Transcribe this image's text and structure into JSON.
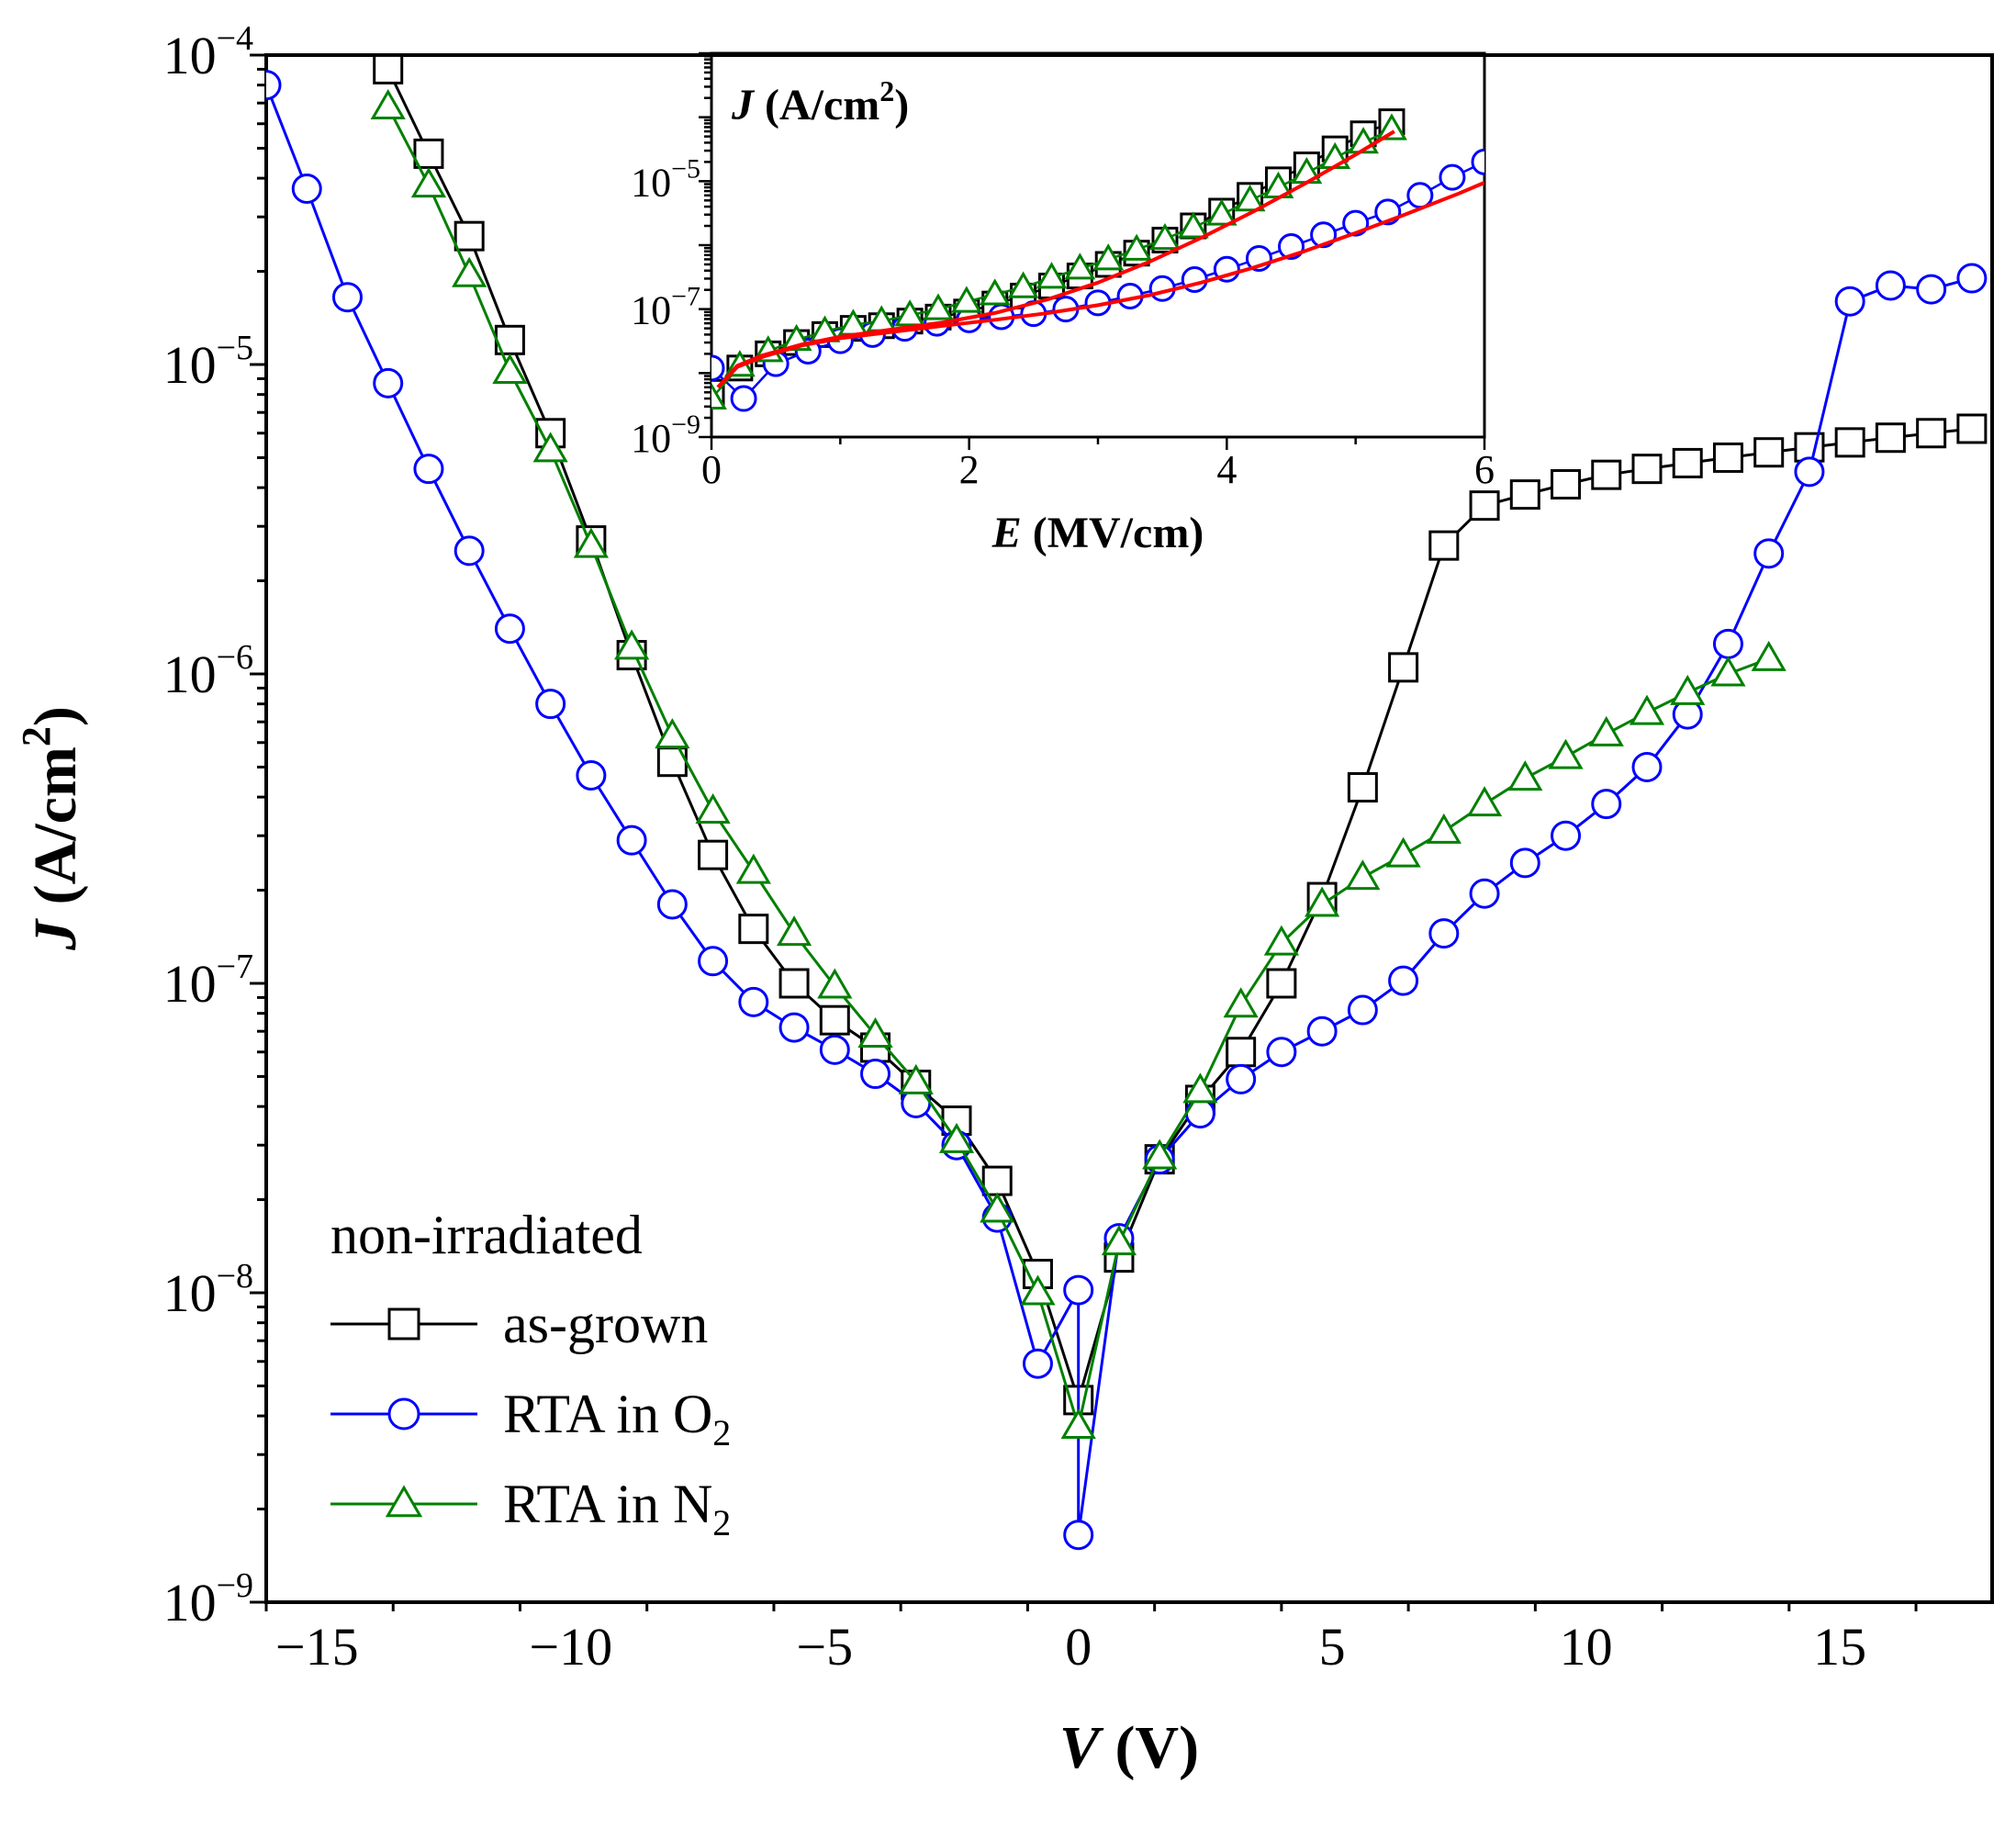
{
  "colors": {
    "as_grown": "#000000",
    "rta_o2": "#0000ff",
    "rta_n2": "#008000",
    "fit": "#ff0000"
  },
  "legend": {
    "title": "non-irradiated",
    "items": [
      {
        "label": "as-grown",
        "marker": "square",
        "color": "#000000"
      },
      {
        "label": "RTA in O",
        "sub": "2",
        "marker": "circle",
        "color": "#0000ff"
      },
      {
        "label": "RTA in N",
        "sub": "2",
        "marker": "triangle",
        "color": "#008000"
      }
    ]
  },
  "chart_data": [
    {
      "type": "line",
      "xlabel": {
        "var": "V",
        "unit": " (V)"
      },
      "ylabel": {
        "var": "J",
        "unit": " (A/cm",
        "sup": "2",
        "close": ")"
      },
      "xlim": [
        -16,
        18
      ],
      "ylim": [
        1e-09,
        0.0001
      ],
      "yscale": "log",
      "xticks": [
        {
          "v": -15,
          "label": "−15"
        },
        {
          "v": -10,
          "label": "−10"
        },
        {
          "v": -5,
          "label": "−5"
        },
        {
          "v": 0,
          "label": "0"
        },
        {
          "v": 5,
          "label": "5"
        },
        {
          "v": 10,
          "label": "10"
        },
        {
          "v": 15,
          "label": "15"
        }
      ],
      "yticks": [
        {
          "v": 1e-09,
          "base": "10",
          "exp": "−9"
        },
        {
          "v": 1e-08,
          "base": "10",
          "exp": "−8"
        },
        {
          "v": 1e-07,
          "base": "10",
          "exp": "−7"
        },
        {
          "v": 1e-06,
          "base": "10",
          "exp": "−6"
        },
        {
          "v": 1e-05,
          "base": "10",
          "exp": "−5"
        },
        {
          "v": 0.0001,
          "base": "10",
          "exp": "−4"
        }
      ],
      "series": [
        {
          "name": "as-grown",
          "marker": "square",
          "color": "#000000",
          "x": [
            -13.6,
            -12.8,
            -12.0,
            -11.2,
            -10.4,
            -9.6,
            -8.8,
            -8.0,
            -7.2,
            -6.4,
            -5.6,
            -4.8,
            -4.0,
            -3.2,
            -2.4,
            -1.6,
            -0.8,
            0.0,
            0.8,
            1.6,
            2.4,
            3.2,
            4.0,
            4.8,
            5.6,
            6.4,
            7.2,
            8.0,
            8.8,
            9.6,
            10.4,
            11.2,
            12.0,
            12.8,
            13.6,
            14.4,
            15.2,
            16.0,
            16.8,
            17.6
          ],
          "y": [
            9e-05,
            4.8e-05,
            2.6e-05,
            1.2e-05,
            6e-06,
            2.7e-06,
            1.15e-06,
            5.2e-07,
            2.6e-07,
            1.5e-07,
            1e-07,
            7.6e-08,
            6.2e-08,
            4.7e-08,
            3.6e-08,
            2.3e-08,
            1.15e-08,
            4.5e-09,
            1.3e-08,
            2.7e-08,
            4.2e-08,
            6e-08,
            1e-07,
            1.9e-07,
            4.3e-07,
            1.05e-06,
            2.6e-06,
            3.5e-06,
            3.8e-06,
            4.1e-06,
            4.4e-06,
            4.6e-06,
            4.8e-06,
            5e-06,
            5.2e-06,
            5.4e-06,
            5.6e-06,
            5.8e-06,
            6e-06,
            6.2e-06
          ]
        },
        {
          "name": "RTA in O2",
          "marker": "circle",
          "color": "#0000ff",
          "x": [
            -16.0,
            -15.2,
            -14.4,
            -13.6,
            -12.8,
            -12.0,
            -11.2,
            -10.4,
            -9.6,
            -8.8,
            -8.0,
            -7.2,
            -6.4,
            -5.6,
            -4.8,
            -4.0,
            -3.2,
            -2.4,
            -1.6,
            -0.8,
            0.0,
            0.0,
            0.8,
            1.6,
            2.4,
            3.2,
            4.0,
            4.8,
            5.6,
            6.4,
            7.2,
            8.0,
            8.8,
            9.6,
            10.4,
            11.2,
            12.0,
            12.8,
            13.6,
            14.4,
            15.2,
            16.0,
            16.8,
            17.6
          ],
          "y": [
            8e-05,
            3.7e-05,
            1.65e-05,
            8.7e-06,
            4.6e-06,
            2.5e-06,
            1.4e-06,
            8e-07,
            4.7e-07,
            2.9e-07,
            1.8e-07,
            1.18e-07,
            8.7e-08,
            7.2e-08,
            6.1e-08,
            5.1e-08,
            4.1e-08,
            3e-08,
            1.75e-08,
            5.9e-09,
            1.02e-08,
            1.65e-09,
            1.5e-08,
            2.7e-08,
            3.8e-08,
            4.9e-08,
            6e-08,
            7e-08,
            8.2e-08,
            1.02e-07,
            1.45e-07,
            1.95e-07,
            2.45e-07,
            3e-07,
            3.8e-07,
            5e-07,
            7.4e-07,
            1.25e-06,
            2.45e-06,
            4.5e-06,
            1.6e-05,
            1.8e-05,
            1.75e-05,
            1.9e-05
          ]
        },
        {
          "name": "RTA in N2",
          "marker": "triangle",
          "color": "#008000",
          "x": [
            -13.6,
            -12.8,
            -12.0,
            -11.2,
            -10.4,
            -9.6,
            -8.8,
            -8.0,
            -7.2,
            -6.4,
            -5.6,
            -4.8,
            -4.0,
            -3.2,
            -2.4,
            -1.6,
            -0.8,
            0.0,
            0.8,
            1.6,
            2.4,
            3.2,
            4.0,
            4.8,
            5.6,
            6.4,
            7.2,
            8.0,
            8.8,
            9.6,
            10.4,
            11.2,
            12.0,
            12.8,
            13.6
          ],
          "y": [
            6.8e-05,
            3.8e-05,
            1.95e-05,
            9.5e-06,
            5.3e-06,
            2.6e-06,
            1.22e-06,
            6.3e-07,
            3.6e-07,
            2.3e-07,
            1.45e-07,
            9.8e-08,
            6.8e-08,
            4.8e-08,
            3.1e-08,
            1.85e-08,
            1e-08,
            3.7e-09,
            1.45e-08,
            2.75e-08,
            4.5e-08,
            8.5e-08,
            1.35e-07,
            1.8e-07,
            2.2e-07,
            2.6e-07,
            3.1e-07,
            3.8e-07,
            4.6e-07,
            5.4e-07,
            6.4e-07,
            7.5e-07,
            8.7e-07,
            1e-06,
            1.12e-06
          ]
        }
      ]
    },
    {
      "type": "line",
      "xlabel": {
        "var": "E",
        "unit": " (MV/cm)"
      },
      "ylabel": {
        "var": "J",
        "unit": " (A/cm",
        "sup": "2",
        "close": ")"
      },
      "xlim": [
        0,
        6
      ],
      "ylim": [
        1e-09,
        0.001
      ],
      "yscale": "log",
      "xticks": [
        {
          "v": 0,
          "label": "0"
        },
        {
          "v": 2,
          "label": "2"
        },
        {
          "v": 4,
          "label": "4"
        },
        {
          "v": 6,
          "label": "6"
        }
      ],
      "yticks": [
        {
          "v": 1e-09,
          "base": "10",
          "exp": "−9"
        },
        {
          "v": 1e-07,
          "base": "10",
          "exp": "−7"
        },
        {
          "v": 1e-05,
          "base": "10",
          "exp": "−5"
        }
      ],
      "series": [
        {
          "name": "as-grown",
          "marker": "square",
          "color": "#000000",
          "x": [
            0.0,
            0.22,
            0.44,
            0.66,
            0.88,
            1.1,
            1.32,
            1.54,
            1.76,
            1.98,
            2.2,
            2.42,
            2.64,
            2.86,
            3.08,
            3.3,
            3.52,
            3.74,
            3.96,
            4.18,
            4.4,
            4.62,
            4.84,
            5.06,
            5.28
          ],
          "y": [
            5e-09,
            1.2e-08,
            2e-08,
            3e-08,
            4e-08,
            5e-08,
            5.5e-08,
            6.5e-08,
            7.5e-08,
            9e-08,
            1.2e-07,
            1.6e-07,
            2.3e-07,
            3.3e-07,
            5e-07,
            7.5e-07,
            1.2e-06,
            2e-06,
            3.4e-06,
            6e-06,
            1.05e-05,
            1.8e-05,
            3.2e-05,
            5.5e-05,
            8.5e-05
          ]
        },
        {
          "name": "RTA in O2",
          "marker": "circle",
          "color": "#0000ff",
          "x": [
            0.0,
            0.25,
            0.5,
            0.75,
            1.0,
            1.25,
            1.5,
            1.75,
            2.0,
            2.25,
            2.5,
            2.75,
            3.0,
            3.25,
            3.5,
            3.75,
            4.0,
            4.25,
            4.5,
            4.75,
            5.0,
            5.25,
            5.5,
            5.75,
            6.0
          ],
          "y": [
            1.2e-08,
            4e-09,
            1.4e-08,
            2.2e-08,
            3.2e-08,
            4e-08,
            5e-08,
            6e-08,
            6.8e-08,
            7.6e-08,
            8.5e-08,
            1e-07,
            1.25e-07,
            1.6e-07,
            2.1e-07,
            2.9e-07,
            4.2e-07,
            6.2e-07,
            9.5e-07,
            1.45e-06,
            2.2e-06,
            3.3e-06,
            6e-06,
            1.15e-05,
            2e-05
          ]
        },
        {
          "name": "RTA in N2",
          "marker": "triangle",
          "color": "#008000",
          "x": [
            0.0,
            0.22,
            0.44,
            0.66,
            0.88,
            1.1,
            1.32,
            1.54,
            1.76,
            1.98,
            2.2,
            2.42,
            2.64,
            2.86,
            3.08,
            3.3,
            3.52,
            3.74,
            3.96,
            4.18,
            4.4,
            4.62,
            4.84,
            5.06,
            5.28
          ],
          "y": [
            4e-09,
            1.3e-08,
            2.2e-08,
            3.3e-08,
            4.5e-08,
            5.7e-08,
            6.5e-08,
            8e-08,
            1e-07,
            1.3e-07,
            1.7e-07,
            2.2e-07,
            3.1e-07,
            4.3e-07,
            6e-07,
            8.5e-07,
            1.25e-06,
            1.9e-06,
            3e-06,
            5e-06,
            8e-06,
            1.35e-05,
            2.3e-05,
            4e-05,
            6.5e-05
          ]
        },
        {
          "name": "",
          "marker": "none",
          "color": "#ff0000",
          "x": [
            0.05,
            0.2,
            0.4,
            0.7,
            1.0,
            1.4,
            1.8,
            2.2,
            2.6,
            3.0,
            3.4,
            3.8,
            4.2,
            4.6,
            5.0,
            5.3
          ],
          "y": [
            6e-09,
            1.3e-08,
            1.9e-08,
            2.8e-08,
            3.7e-08,
            4.8e-08,
            6.2e-08,
            8.7e-08,
            1.4e-07,
            2.6e-07,
            5.5e-07,
            1.3e-06,
            3.3e-06,
            9e-06,
            2.6e-05,
            6e-05
          ]
        },
        {
          "name": "",
          "marker": "none",
          "color": "#ff0000",
          "x": [
            0.05,
            0.2,
            0.4,
            0.7,
            1.0,
            1.4,
            1.8,
            2.2,
            2.6,
            3.0,
            3.4,
            3.8,
            4.2,
            4.6,
            5.0,
            5.4,
            5.8,
            6.0
          ],
          "y": [
            6e-09,
            1.25e-08,
            1.8e-08,
            2.7e-08,
            3.5e-08,
            4.4e-08,
            5.5e-08,
            6.8e-08,
            8.6e-08,
            1.15e-07,
            1.65e-07,
            2.6e-07,
            4.4e-07,
            8e-07,
            1.55e-06,
            3.1e-06,
            6.4e-06,
            9.5e-06
          ]
        }
      ]
    }
  ]
}
